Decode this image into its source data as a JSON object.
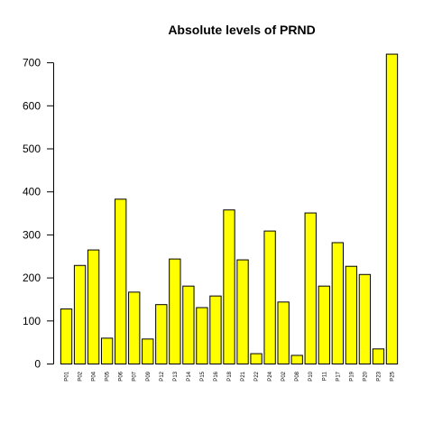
{
  "chart_data": {
    "type": "bar",
    "title": "Absolute levels of PRND",
    "xlabel": "",
    "ylabel": "",
    "ylim": [
      0,
      720
    ],
    "yticks": [
      0,
      100,
      200,
      300,
      400,
      500,
      600,
      700
    ],
    "categories": [
      "P01",
      "P02",
      "P04",
      "P05",
      "P06",
      "P07",
      "P09",
      "P12",
      "P13",
      "P14",
      "P15",
      "P16",
      "P18",
      "P21",
      "P22",
      "P24",
      "P02",
      "P08",
      "P10",
      "P11",
      "P17",
      "P19",
      "P20",
      "P23",
      "P25"
    ],
    "values": [
      128,
      229,
      265,
      60,
      383,
      167,
      58,
      138,
      244,
      181,
      131,
      158,
      358,
      242,
      24,
      309,
      144,
      20,
      351,
      181,
      282,
      227,
      208,
      35,
      720
    ],
    "bar_color": "#FFFF00",
    "bar_border": "#000000",
    "grid": false,
    "legend": "none"
  }
}
